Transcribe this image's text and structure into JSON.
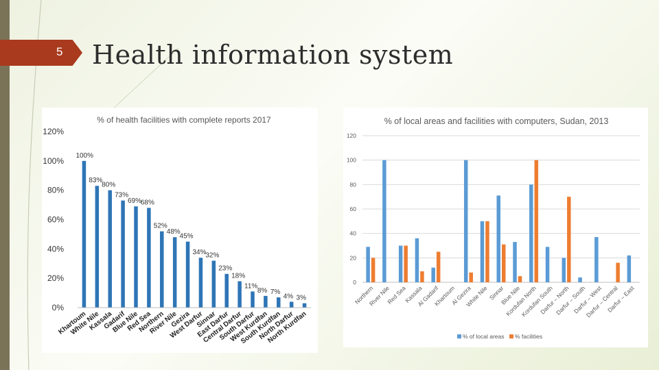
{
  "slide": {
    "number": "5",
    "title": "Health information system"
  },
  "colors": {
    "accent": "#a93a1d",
    "sidebar": "#7a7358",
    "bar1": "#2e75b6",
    "series_blue": "#5b9bd5",
    "series_orange": "#ed7d31"
  },
  "chart_data": [
    {
      "type": "bar",
      "title": "% of health facilities with complete reports 2017",
      "categories": [
        "Khartoum",
        "White Nile",
        "Kassala",
        "Gadarif",
        "Blue Nile",
        "Red Sea",
        "Northern",
        "River Nile",
        "Gezira",
        "West Darfur",
        "Sinnar",
        "East Darfur",
        "Central Darfur",
        "South Darfur",
        "West Kurdfan",
        "South Kurdfan",
        "North Darfur",
        "North Kurdfan"
      ],
      "values": [
        100,
        83,
        80,
        73,
        69,
        68,
        52,
        48,
        45,
        34,
        32,
        23,
        18,
        11,
        8,
        7,
        4,
        3
      ],
      "data_labels": [
        "100%",
        "83%",
        "80%",
        "73%",
        "69%",
        "68%",
        "52%",
        "48%",
        "45%",
        "34%",
        "32%",
        "23%",
        "18%",
        "11%",
        "8%",
        "7%",
        "4%",
        "3%"
      ],
      "ylim": [
        0,
        120
      ],
      "yticks": [
        "0%",
        "20%",
        "40%",
        "60%",
        "80%",
        "100%",
        "120%"
      ],
      "grid": false
    },
    {
      "type": "bar",
      "title": "% of local areas and facilities with computers, Sudan, 2013",
      "categories": [
        "Northern",
        "River Nile",
        "Red Sea",
        "Kassala",
        "Al Gadarif",
        "Khartoum",
        "Al Gezira",
        "White Nile",
        "Sinnar",
        "Blue Nile",
        "Kordufan North",
        "Kordufan South",
        "Darfur – North",
        "Darfur – South",
        "Darfur – West",
        "Darfur – Central",
        "Darfur – East"
      ],
      "series": [
        {
          "name": "% of local areas",
          "values": [
            29,
            100,
            30,
            36,
            12,
            null,
            100,
            50,
            71,
            33,
            80,
            29,
            20,
            4,
            37,
            null,
            22
          ]
        },
        {
          "name": "% facilities",
          "values": [
            20,
            null,
            30,
            9,
            25,
            null,
            8,
            50,
            31,
            5,
            100,
            null,
            70,
            null,
            null,
            16,
            null
          ]
        }
      ],
      "ylim": [
        0,
        120
      ],
      "yticks": [
        "0",
        "20",
        "40",
        "60",
        "80",
        "100",
        "120"
      ],
      "grid": true,
      "legend_position": "bottom"
    }
  ]
}
